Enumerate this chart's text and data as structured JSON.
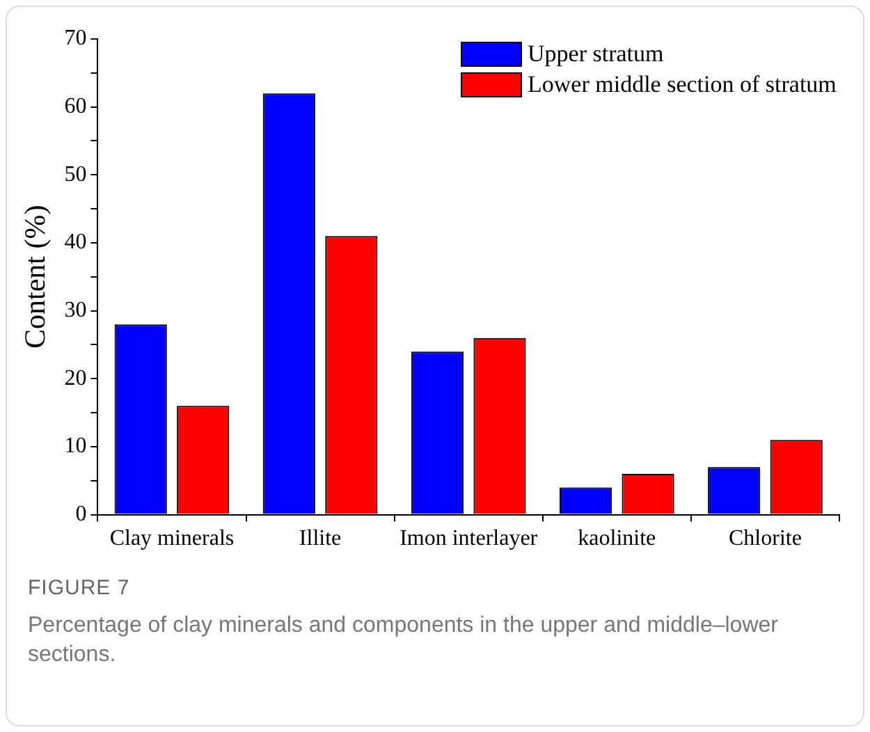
{
  "chart_data": {
    "type": "bar",
    "ylabel": "Content (%)",
    "categories": [
      "Clay minerals",
      "Illite",
      "Imon interlayer",
      "kaolinite",
      "Chlorite"
    ],
    "series": [
      {
        "name": "Upper stratum",
        "color": "#0000ff",
        "values": [
          28,
          62,
          24,
          4,
          7
        ]
      },
      {
        "name": "Lower middle section of stratum",
        "color": "#ff0000",
        "values": [
          16,
          41,
          26,
          6,
          11
        ]
      }
    ],
    "ylim": [
      0,
      70
    ],
    "yticks": [
      0,
      {
        "value": 5,
        "label": null
      },
      10,
      {
        "value": 15,
        "label": null
      },
      20,
      {
        "value": 25,
        "label": null
      },
      30,
      {
        "value": 35,
        "label": null
      },
      40,
      {
        "value": 45,
        "label": null
      },
      50,
      {
        "value": 55,
        "label": null
      },
      60,
      {
        "value": 65,
        "label": null
      },
      70
    ],
    "grid": false,
    "legend": "top right",
    "annotations": [
      "FIGURE 7",
      "Percentage of clay minerals and components in the upper and middle–lower sections."
    ]
  }
}
